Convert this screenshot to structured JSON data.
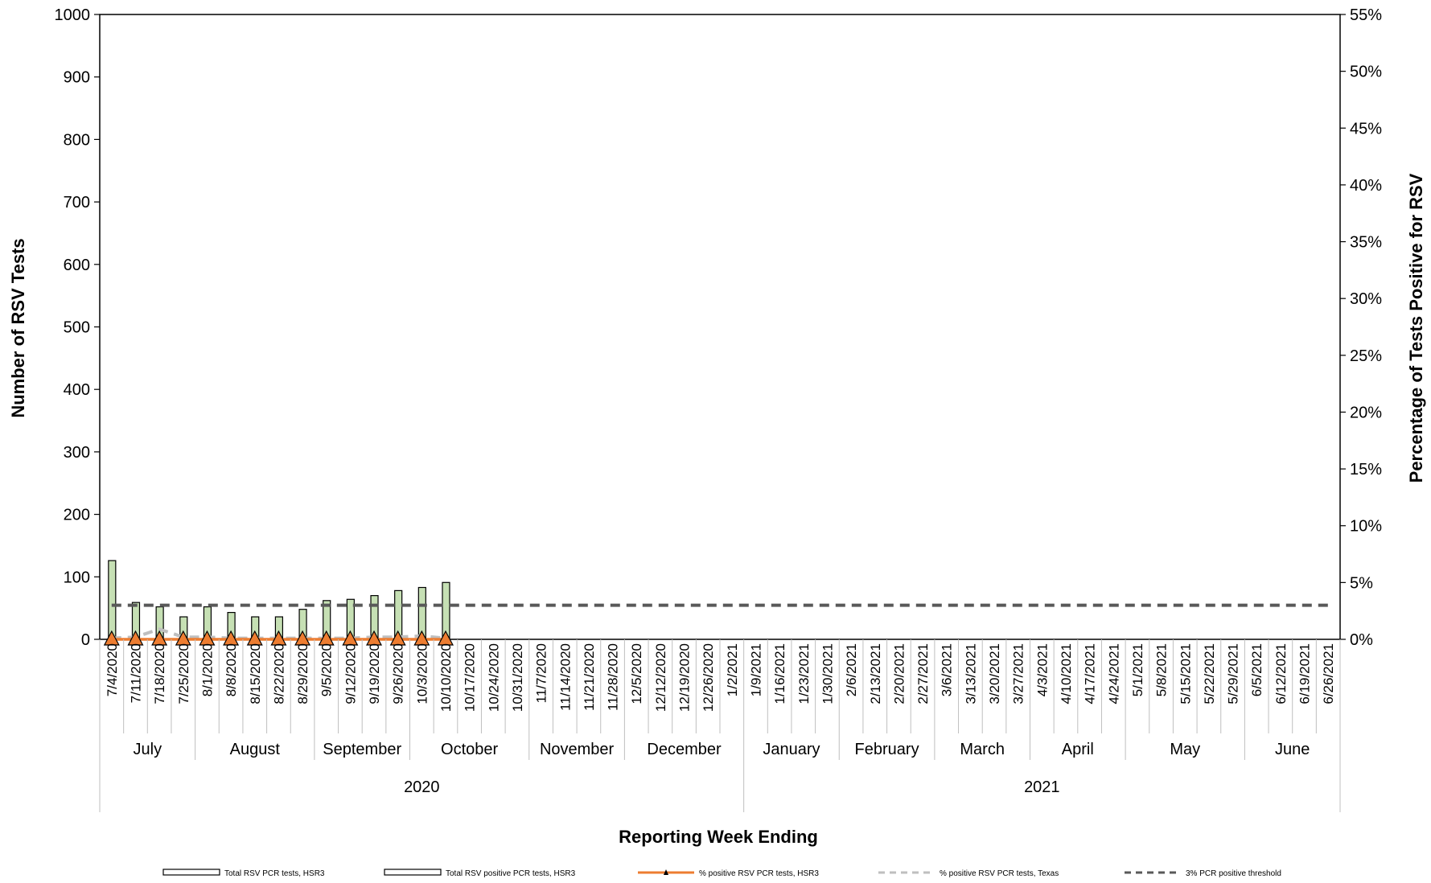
{
  "chart_data": {
    "type": "bar",
    "title": "",
    "xlabel": "Reporting Week Ending",
    "ylabel": "Number of RSV Tests",
    "y2label": "Percentage of Tests Positive for RSV",
    "ylim": [
      0,
      1000
    ],
    "y2lim": [
      0,
      55
    ],
    "yticks": [
      "0",
      "100",
      "200",
      "300",
      "400",
      "500",
      "600",
      "700",
      "800",
      "900",
      "1000"
    ],
    "y2ticks": [
      "0%",
      "5%",
      "10%",
      "15%",
      "20%",
      "25%",
      "30%",
      "35%",
      "40%",
      "45%",
      "50%",
      "55%"
    ],
    "grid": false,
    "legend_position": "bottom",
    "categories": [
      "7/4/2020",
      "7/11/2020",
      "7/18/2020",
      "7/25/2020",
      "8/1/2020",
      "8/8/2020",
      "8/15/2020",
      "8/22/2020",
      "8/29/2020",
      "9/5/2020",
      "9/12/2020",
      "9/19/2020",
      "9/26/2020",
      "10/3/2020",
      "10/10/2020",
      "10/17/2020",
      "10/24/2020",
      "10/31/2020",
      "11/7/2020",
      "11/14/2020",
      "11/21/2020",
      "11/28/2020",
      "12/5/2020",
      "12/12/2020",
      "12/19/2020",
      "12/26/2020",
      "1/2/2021",
      "1/9/2021",
      "1/16/2021",
      "1/23/2021",
      "1/30/2021",
      "2/6/2021",
      "2/13/2021",
      "2/20/2021",
      "2/27/2021",
      "3/6/2021",
      "3/13/2021",
      "3/20/2021",
      "3/27/2021",
      "4/3/2021",
      "4/10/2021",
      "4/17/2021",
      "4/24/2021",
      "5/1/2021",
      "5/8/2021",
      "5/15/2021",
      "5/22/2021",
      "5/29/2021",
      "6/5/2021",
      "6/12/2021",
      "6/19/2021",
      "6/26/2021"
    ],
    "months": [
      {
        "label": "July",
        "start": 0,
        "end": 4
      },
      {
        "label": "August",
        "start": 4,
        "end": 9
      },
      {
        "label": "September",
        "start": 9,
        "end": 13
      },
      {
        "label": "October",
        "start": 13,
        "end": 18
      },
      {
        "label": "November",
        "start": 18,
        "end": 22
      },
      {
        "label": "December",
        "start": 22,
        "end": 27
      },
      {
        "label": "January",
        "start": 27,
        "end": 31
      },
      {
        "label": "February",
        "start": 31,
        "end": 35
      },
      {
        "label": "March",
        "start": 35,
        "end": 39
      },
      {
        "label": "April",
        "start": 39,
        "end": 43
      },
      {
        "label": "May",
        "start": 43,
        "end": 48
      },
      {
        "label": "June",
        "start": 48,
        "end": 52
      }
    ],
    "years": [
      {
        "label": "2020",
        "start": 0,
        "end": 27
      },
      {
        "label": "2021",
        "start": 27,
        "end": 52
      }
    ],
    "series": [
      {
        "name": "Total RSV PCR tests, HSR3",
        "type": "bar",
        "axis": "left",
        "color": "#c6e0b4",
        "values": [
          126,
          59,
          52,
          36,
          52,
          43,
          36,
          36,
          48,
          62,
          64,
          70,
          78,
          83,
          91,
          null,
          null,
          null,
          null,
          null,
          null,
          null,
          null,
          null,
          null,
          null,
          null,
          null,
          null,
          null,
          null,
          null,
          null,
          null,
          null,
          null,
          null,
          null,
          null,
          null,
          null,
          null,
          null,
          null,
          null,
          null,
          null,
          null,
          null,
          null,
          null,
          null
        ]
      },
      {
        "name": "Total RSV positive PCR tests, HSR3",
        "type": "bar",
        "axis": "left",
        "color": "#ffffff",
        "values": [
          0,
          0,
          0,
          0,
          0,
          0,
          0,
          0,
          0,
          0,
          0,
          0,
          0,
          0,
          0,
          null,
          null,
          null,
          null,
          null,
          null,
          null,
          null,
          null,
          null,
          null,
          null,
          null,
          null,
          null,
          null,
          null,
          null,
          null,
          null,
          null,
          null,
          null,
          null,
          null,
          null,
          null,
          null,
          null,
          null,
          null,
          null,
          null,
          null,
          null,
          null,
          null
        ]
      },
      {
        "name": "% positive RSV PCR tests, HSR3",
        "type": "line",
        "axis": "right",
        "color": "#ed7d31",
        "marker": "triangle",
        "values": [
          0,
          0,
          0,
          0,
          0,
          0,
          0,
          0,
          0,
          0,
          0,
          0,
          0,
          0,
          0,
          null,
          null,
          null,
          null,
          null,
          null,
          null,
          null,
          null,
          null,
          null,
          null,
          null,
          null,
          null,
          null,
          null,
          null,
          null,
          null,
          null,
          null,
          null,
          null,
          null,
          null,
          null,
          null,
          null,
          null,
          null,
          null,
          null,
          null,
          null,
          null,
          null
        ]
      },
      {
        "name": "% positive RSV PCR  tests, Texas",
        "type": "line",
        "axis": "right",
        "color": "#bfbfbf",
        "dash": "dashed",
        "values": [
          0.1,
          0.2,
          0.9,
          0.2,
          0.2,
          0.1,
          0.1,
          0.1,
          0.1,
          0.1,
          0.1,
          0.2,
          0.2,
          0.3,
          0.1,
          null,
          null,
          null,
          null,
          null,
          null,
          null,
          null,
          null,
          null,
          null,
          null,
          null,
          null,
          null,
          null,
          null,
          null,
          null,
          null,
          null,
          null,
          null,
          null,
          null,
          null,
          null,
          null,
          null,
          null,
          null,
          null,
          null,
          null,
          null,
          null,
          null
        ]
      },
      {
        "name": "3% PCR positive threshold",
        "type": "line",
        "axis": "right",
        "color": "#595959",
        "dash": "dashed",
        "values": [
          3,
          3,
          3,
          3,
          3,
          3,
          3,
          3,
          3,
          3,
          3,
          3,
          3,
          3,
          3,
          3,
          3,
          3,
          3,
          3,
          3,
          3,
          3,
          3,
          3,
          3,
          3,
          3,
          3,
          3,
          3,
          3,
          3,
          3,
          3,
          3,
          3,
          3,
          3,
          3,
          3,
          3,
          3,
          3,
          3,
          3,
          3,
          3,
          3,
          3,
          3,
          3
        ]
      }
    ]
  }
}
